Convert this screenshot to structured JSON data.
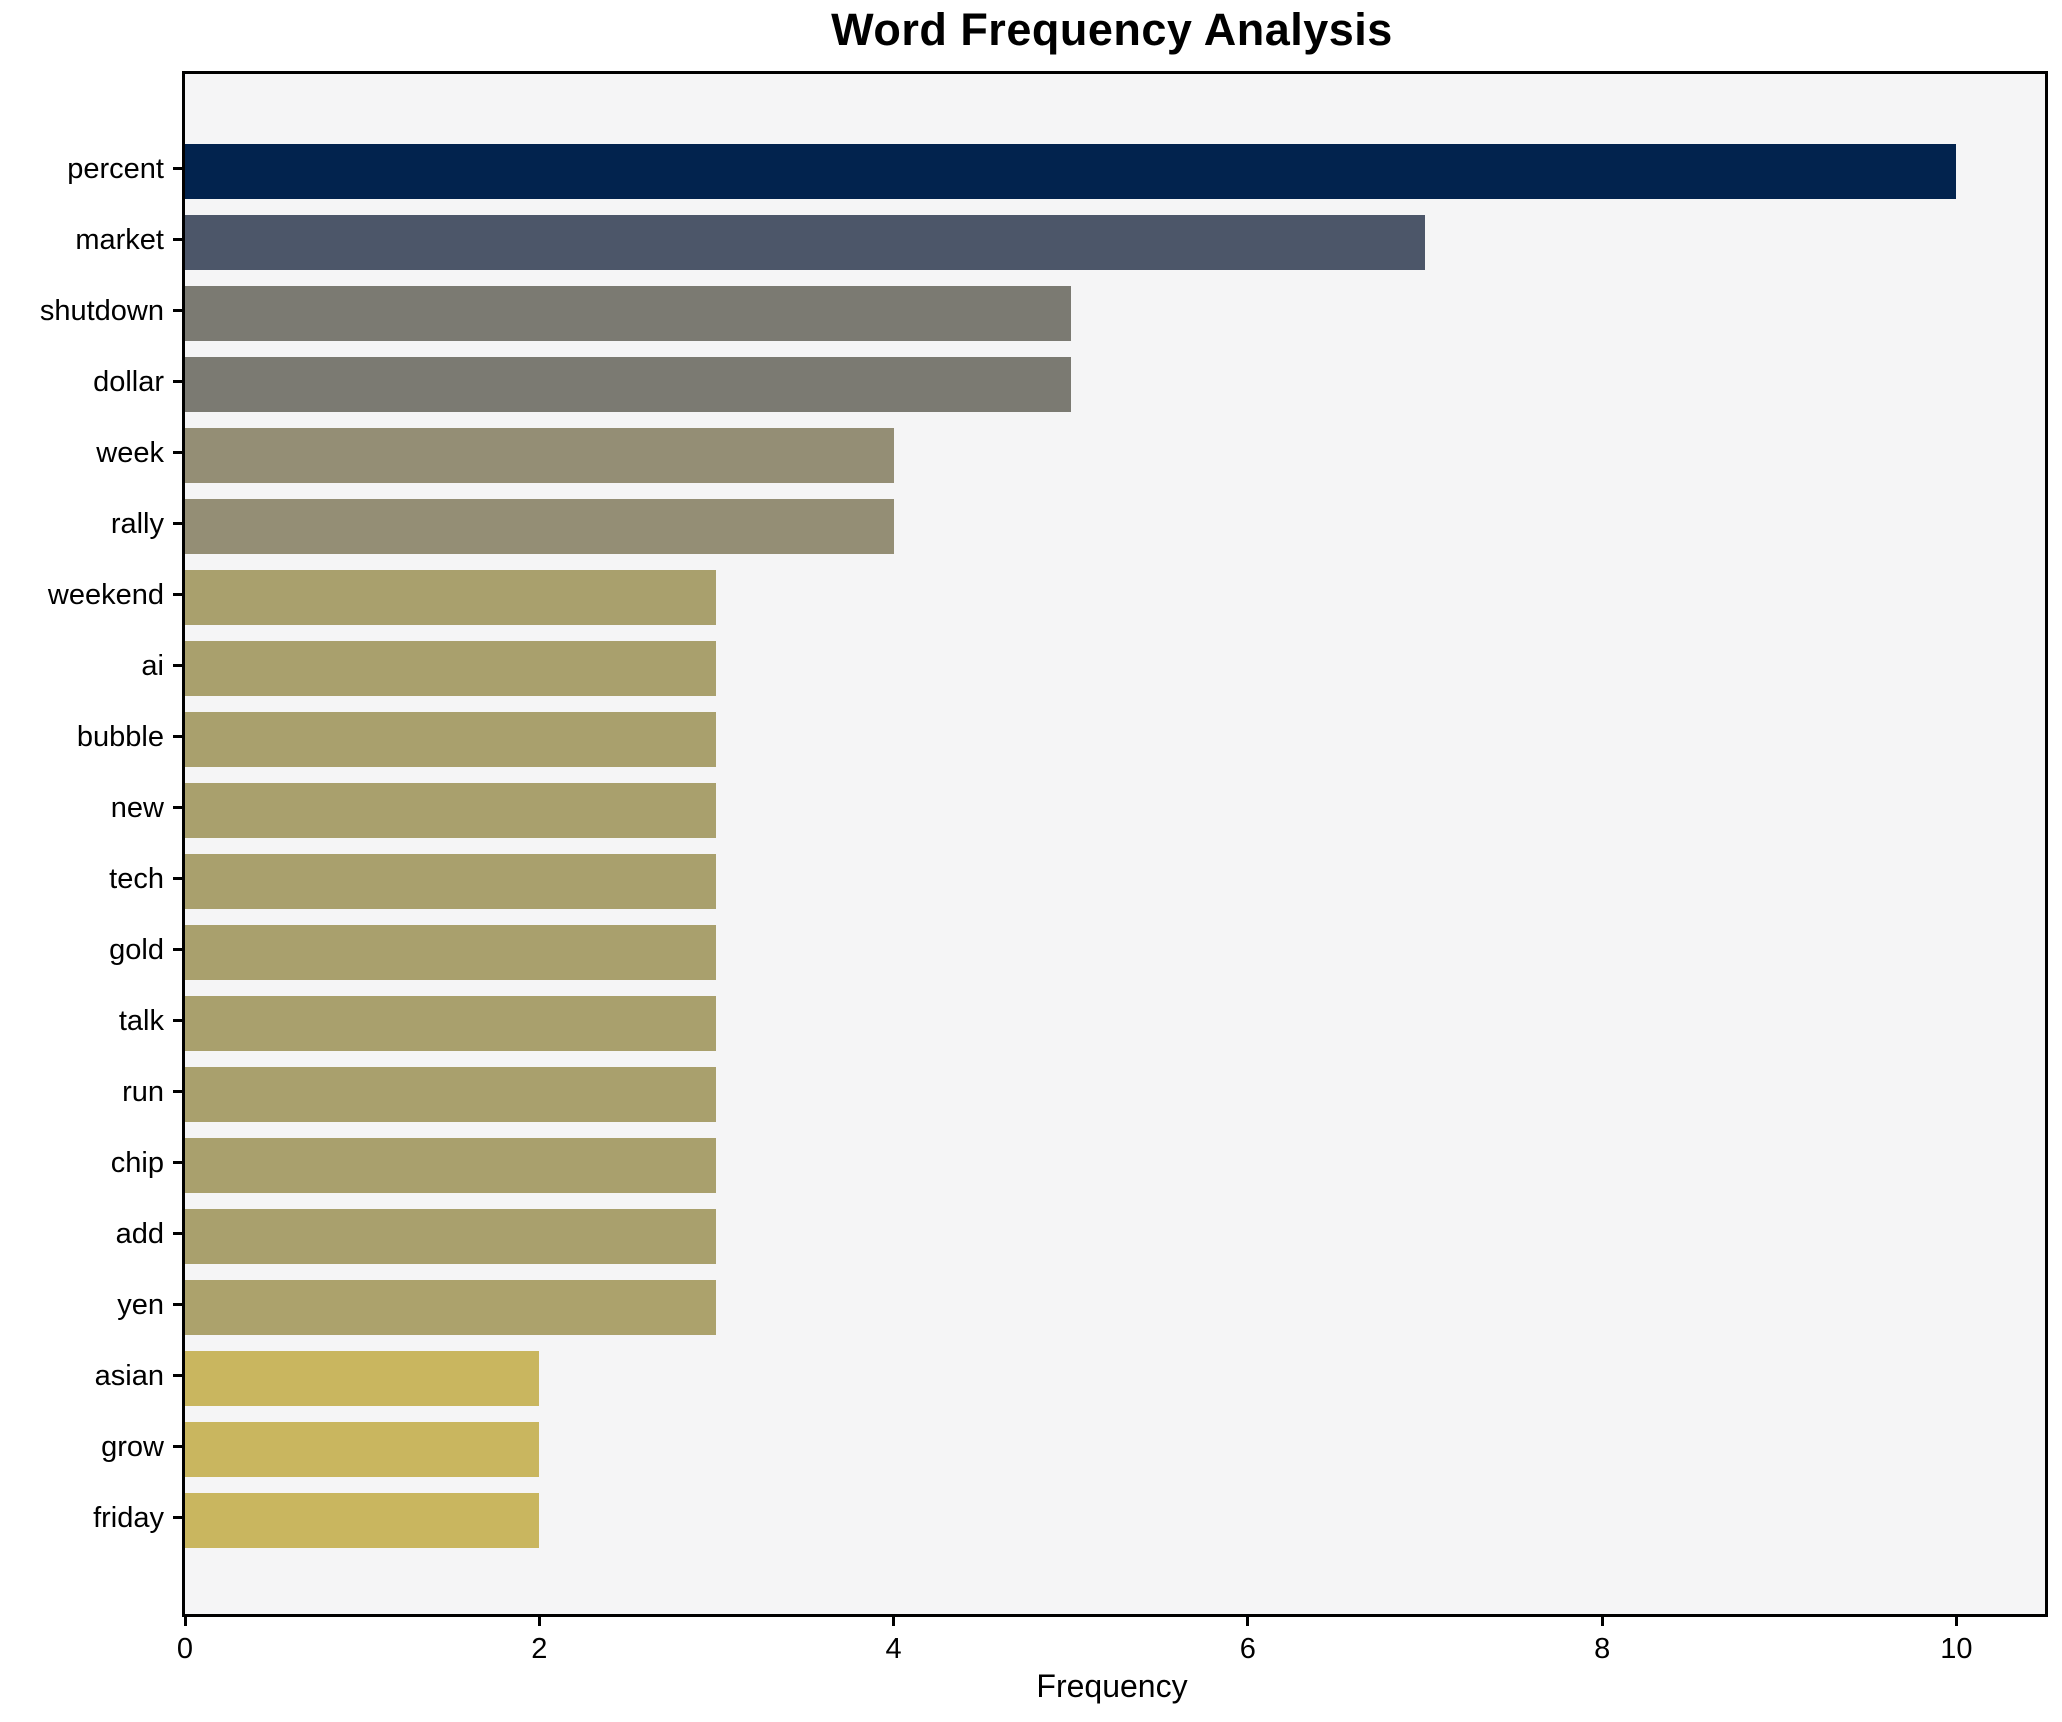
{
  "chart_data": {
    "type": "bar",
    "orientation": "horizontal",
    "title": "Word Frequency Analysis",
    "xlabel": "Frequency",
    "ylabel": "",
    "categories": [
      "percent",
      "market",
      "shutdown",
      "dollar",
      "week",
      "rally",
      "weekend",
      "ai",
      "bubble",
      "new",
      "tech",
      "gold",
      "talk",
      "run",
      "chip",
      "add",
      "yen",
      "asian",
      "grow",
      "friday"
    ],
    "values": [
      10,
      7,
      5,
      5,
      4,
      4,
      3,
      3,
      3,
      3,
      3,
      3,
      3,
      3,
      3,
      3,
      3,
      2,
      2,
      2
    ],
    "bar_colors": [
      "#02234e",
      "#4c5669",
      "#7b7a72",
      "#7b7a72",
      "#948e75",
      "#948e75",
      "#a9a06d",
      "#a9a06d",
      "#a9a06d",
      "#a9a06d",
      "#a9a06d",
      "#a9a06d",
      "#a9a06d",
      "#a9a06d",
      "#a9a06d",
      "#a9a06d",
      "#aca26c",
      "#c9b65f",
      "#c9b65f",
      "#c9b65f"
    ],
    "x_ticks": [
      "0",
      "2",
      "4",
      "6",
      "8",
      "10"
    ],
    "x_tick_values": [
      0,
      2,
      4,
      6,
      8,
      10
    ],
    "xlim": [
      0,
      10.5
    ],
    "grid": false,
    "legend": null,
    "plot_bg": "#f5f5f6",
    "fig_bg": "#ffffff",
    "spine_color": "#000000",
    "text_color": "#000000"
  }
}
